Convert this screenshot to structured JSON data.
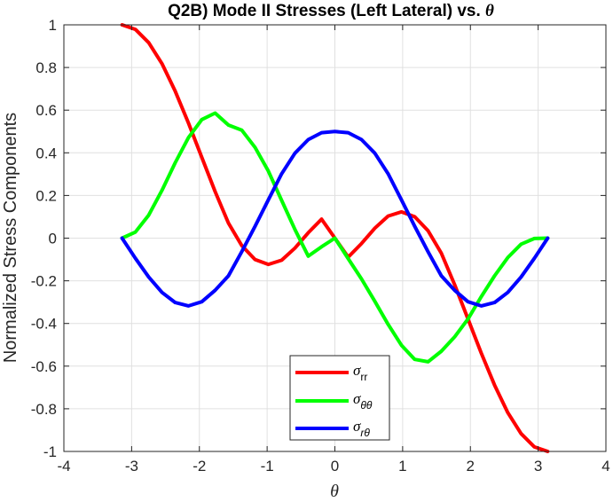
{
  "chart_data": {
    "type": "line",
    "title": "Q2B) Mode II Stresses (Left Lateral) vs.",
    "title_symbol": "θ",
    "xlabel": "θ",
    "ylabel": "Normalized Stress Components",
    "xlim": [
      -4,
      4
    ],
    "ylim": [
      -1,
      1
    ],
    "x_ticks": [
      -4,
      -3,
      -2,
      -1,
      0,
      1,
      2,
      3,
      4
    ],
    "y_ticks": [
      -1,
      -0.8,
      -0.6,
      -0.4,
      -0.2,
      0,
      0.2,
      0.4,
      0.6,
      0.8,
      1
    ],
    "x_tick_labels": [
      "-4",
      "-3",
      "-2",
      "-1",
      "0",
      "1",
      "2",
      "3",
      "4"
    ],
    "y_tick_labels": [
      "-1",
      "-0.8",
      "-0.6",
      "-0.4",
      "-0.2",
      "0",
      "0.2",
      "0.4",
      "0.6",
      "0.8",
      "1"
    ],
    "grid": true,
    "legend_position": "bottom-center",
    "x": [
      -3.1416,
      -2.9452,
      -2.7489,
      -2.5525,
      -2.3562,
      -2.1598,
      -1.9635,
      -1.7671,
      -1.5708,
      -1.3744,
      -1.1781,
      -0.9817,
      -0.7854,
      -0.589,
      -0.3927,
      -0.1963,
      0,
      0.1963,
      0.3927,
      0.589,
      0.7854,
      0.9817,
      1.1781,
      1.3744,
      1.5708,
      1.7671,
      1.9635,
      2.1598,
      2.3562,
      2.5525,
      2.7489,
      2.9452,
      3.1416
    ],
    "series": [
      {
        "name": "σ",
        "subscript": "rr",
        "color": "#ff0000",
        "values": [
          1.0,
          0.9788,
          0.9166,
          0.8177,
          0.6888,
          0.5388,
          0.3782,
          0.2185,
          0.0707,
          -0.0348,
          -0.1004,
          -0.1231,
          -0.1036,
          -0.0466,
          0.0252,
          0.0891,
          0.0,
          -0.0891,
          -0.0252,
          0.0466,
          0.1036,
          0.1231,
          0.1004,
          0.0348,
          -0.0707,
          -0.2185,
          -0.3782,
          -0.5388,
          -0.6888,
          -0.8177,
          -0.9166,
          -0.9788,
          -1.0
        ]
      },
      {
        "name": "σ",
        "subscript": "θθ",
        "color": "#00ff00",
        "values": [
          0.0,
          0.0283,
          0.1075,
          0.2242,
          0.3536,
          0.4717,
          0.5558,
          0.5862,
          0.5303,
          0.5066,
          0.4255,
          0.3143,
          0.1768,
          0.0405,
          -0.0844,
          -0.0405,
          0.0,
          -0.0962,
          -0.1914,
          -0.2962,
          -0.4042,
          -0.5018,
          -0.5683,
          -0.5797,
          -0.5303,
          -0.4628,
          -0.3792,
          -0.2746,
          -0.1768,
          -0.0911,
          -0.0281,
          -0.0018,
          0.0
        ]
      },
      {
        "name": "σ",
        "subscript": "rθ",
        "color": "#0000ff",
        "values": [
          0.0,
          -0.0943,
          -0.1822,
          -0.2543,
          -0.3018,
          -0.3176,
          -0.2982,
          -0.2446,
          -0.1768,
          -0.0637,
          0.0551,
          0.1796,
          0.3018,
          0.3982,
          0.4619,
          0.4942,
          0.5,
          0.4942,
          0.4619,
          0.3982,
          0.3018,
          0.1796,
          0.0551,
          -0.0637,
          -0.1768,
          -0.2446,
          -0.2982,
          -0.3176,
          -0.3018,
          -0.2543,
          -0.1822,
          -0.0943,
          0.0
        ]
      }
    ]
  }
}
